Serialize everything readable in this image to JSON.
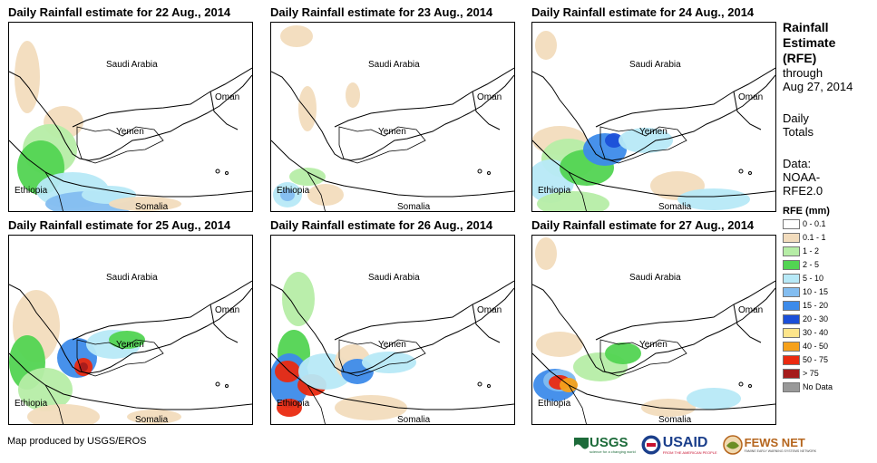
{
  "maps": [
    {
      "title": "Daily Rainfall estimate for 22 Aug., 2014"
    },
    {
      "title": "Daily Rainfall estimate for 23 Aug., 2014"
    },
    {
      "title": "Daily Rainfall estimate for 24 Aug., 2014"
    },
    {
      "title": "Daily Rainfall estimate for 25 Aug., 2014"
    },
    {
      "title": "Daily Rainfall estimate for 26 Aug., 2014"
    },
    {
      "title": "Daily Rainfall estimate for 27 Aug., 2014"
    }
  ],
  "country_labels": {
    "saudi_arabia": "Saudi Arabia",
    "oman": "Oman",
    "yemen": "Yemen",
    "ethiopia": "Ethiopia",
    "somalia": "Somalia"
  },
  "legend": {
    "title_lines": [
      "Rainfall",
      "Estimate",
      "(RFE)"
    ],
    "through_lines": [
      "through",
      "Aug 27, 2014"
    ],
    "daily_lines": [
      "Daily",
      "Totals"
    ],
    "data_lines": [
      "Data:",
      "NOAA-",
      "RFE2.0"
    ],
    "units_title": "RFE (mm)",
    "classes": [
      {
        "label": "0 - 0.1",
        "color": "#ffffff"
      },
      {
        "label": "0.1 - 1",
        "color": "#f2dcbd"
      },
      {
        "label": "1 - 2",
        "color": "#b6eda6"
      },
      {
        "label": "2 - 5",
        "color": "#52d452"
      },
      {
        "label": "5 - 10",
        "color": "#b7e9f7"
      },
      {
        "label": "10 - 15",
        "color": "#83bdf0"
      },
      {
        "label": "15 - 20",
        "color": "#3d8bea"
      },
      {
        "label": "20 - 30",
        "color": "#1b4fd8"
      },
      {
        "label": "30 - 40",
        "color": "#fde58b"
      },
      {
        "label": "40 - 50",
        "color": "#f6a11b"
      },
      {
        "label": "50 - 75",
        "color": "#ea2a10"
      },
      {
        "label": "> 75",
        "color": "#a51c1c"
      },
      {
        "label": "No Data",
        "color": "#999999"
      }
    ]
  },
  "credit": "Map produced by USGS/EROS",
  "logos": {
    "usgs": "USGS",
    "usgs_tagline": "science for a changing world",
    "usaid": "USAID",
    "usaid_tagline": "FROM THE AMERICAN PEOPLE",
    "fewsnet": "FEWS NET",
    "fewsnet_tagline": "FAMINE EARLY WARNING SYSTEMS NETWORK"
  }
}
